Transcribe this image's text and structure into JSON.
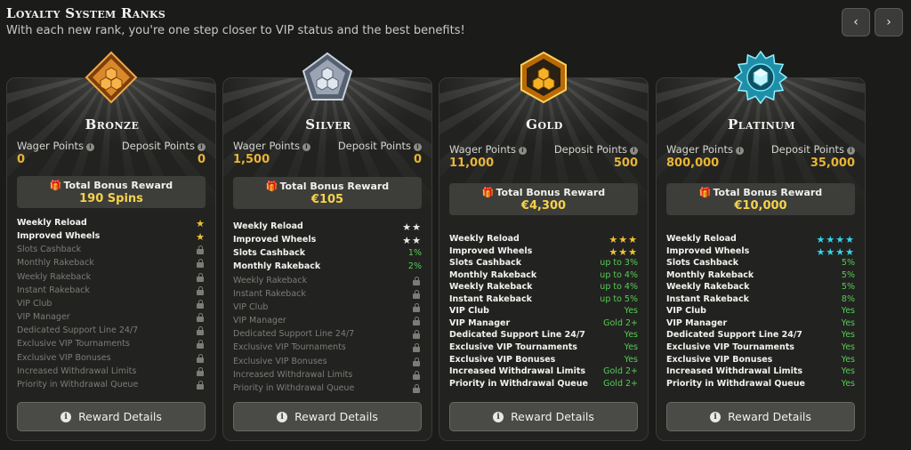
{
  "header": {
    "title": "Loyalty System Ranks",
    "subtitle": "With each new rank, you're one step closer to VIP status and the best benefits!",
    "prev_icon": "chevron-left-icon",
    "next_icon": "chevron-right-icon",
    "prev_glyph": "‹",
    "next_glyph": "›"
  },
  "labels": {
    "wager_points": "Wager Points",
    "deposit_points": "Deposit Points",
    "total_bonus_reward": "Total Bonus Reward",
    "reward_details": "Reward Details"
  },
  "colors": {
    "points": "#e9b436",
    "bonus_value": "#f7d24a",
    "bronze": "#d9892a",
    "silver": "#9aa4b4",
    "gold": "#f2a51c",
    "platinum": "#34c4dc",
    "positive": "#55cc55"
  },
  "cards": [
    {
      "rank": "Bronze",
      "wager_points": "0",
      "deposit_points": "0",
      "bonus": "190 Spins",
      "benefits": [
        {
          "name": "Weekly Reload",
          "value": "★",
          "kind": "star-gold",
          "active": true
        },
        {
          "name": "Improved Wheels",
          "value": "★",
          "kind": "star-gold",
          "active": true
        },
        {
          "name": "Slots Cashback",
          "value": "",
          "kind": "lock",
          "active": false
        },
        {
          "name": "Monthly Rakeback",
          "value": "",
          "kind": "lock",
          "active": false
        },
        {
          "name": "Weekly Rakeback",
          "value": "",
          "kind": "lock",
          "active": false
        },
        {
          "name": "Instant Rakeback",
          "value": "",
          "kind": "lock",
          "active": false
        },
        {
          "name": "VIP Club",
          "value": "",
          "kind": "lock",
          "active": false
        },
        {
          "name": "VIP Manager",
          "value": "",
          "kind": "lock",
          "active": false
        },
        {
          "name": "Dedicated Support Line 24/7",
          "value": "",
          "kind": "lock",
          "active": false
        },
        {
          "name": "Exclusive VIP Tournaments",
          "value": "",
          "kind": "lock",
          "active": false
        },
        {
          "name": "Exclusive VIP Bonuses",
          "value": "",
          "kind": "lock",
          "active": false
        },
        {
          "name": "Increased Withdrawal Limits",
          "value": "",
          "kind": "lock",
          "active": false
        },
        {
          "name": "Priority in Withdrawal Queue",
          "value": "",
          "kind": "lock",
          "active": false
        }
      ]
    },
    {
      "rank": "Silver",
      "wager_points": "1,500",
      "deposit_points": "0",
      "bonus": "€105",
      "benefits": [
        {
          "name": "Weekly Reload",
          "value": "★★",
          "kind": "star-white",
          "active": true
        },
        {
          "name": "Improved Wheels",
          "value": "★★",
          "kind": "star-white",
          "active": true
        },
        {
          "name": "Slots Cashback",
          "value": "1%",
          "kind": "green",
          "active": true
        },
        {
          "name": "Monthly Rakeback",
          "value": "2%",
          "kind": "green",
          "active": true
        },
        {
          "name": "Weekly Rakeback",
          "value": "",
          "kind": "lock",
          "active": false
        },
        {
          "name": "Instant Rakeback",
          "value": "",
          "kind": "lock",
          "active": false
        },
        {
          "name": "VIP Club",
          "value": "",
          "kind": "lock",
          "active": false
        },
        {
          "name": "VIP Manager",
          "value": "",
          "kind": "lock",
          "active": false
        },
        {
          "name": "Dedicated Support Line 24/7",
          "value": "",
          "kind": "lock",
          "active": false
        },
        {
          "name": "Exclusive VIP Tournaments",
          "value": "",
          "kind": "lock",
          "active": false
        },
        {
          "name": "Exclusive VIP Bonuses",
          "value": "",
          "kind": "lock",
          "active": false
        },
        {
          "name": "Increased Withdrawal Limits",
          "value": "",
          "kind": "lock",
          "active": false
        },
        {
          "name": "Priority in Withdrawal Queue",
          "value": "",
          "kind": "lock",
          "active": false
        }
      ]
    },
    {
      "rank": "Gold",
      "wager_points": "11,000",
      "deposit_points": "500",
      "bonus": "€4,300",
      "benefits": [
        {
          "name": "Weekly Reload",
          "value": "★★★",
          "kind": "star-gold",
          "active": true
        },
        {
          "name": "Improved Wheels",
          "value": "★★★",
          "kind": "star-gold",
          "active": true
        },
        {
          "name": "Slots Cashback",
          "value": "up to 3%",
          "kind": "green",
          "active": true
        },
        {
          "name": "Monthly Rakeback",
          "value": "up to 4%",
          "kind": "green",
          "active": true
        },
        {
          "name": "Weekly Rakeback",
          "value": "up to 4%",
          "kind": "green",
          "active": true
        },
        {
          "name": "Instant Rakeback",
          "value": "up to 5%",
          "kind": "green",
          "active": true
        },
        {
          "name": "VIP Club",
          "value": "Yes",
          "kind": "green",
          "active": true
        },
        {
          "name": "VIP Manager",
          "value": "Gold 2+",
          "kind": "green",
          "active": true
        },
        {
          "name": "Dedicated Support Line 24/7",
          "value": "Yes",
          "kind": "green",
          "active": true
        },
        {
          "name": "Exclusive VIP Tournaments",
          "value": "Yes",
          "kind": "green",
          "active": true
        },
        {
          "name": "Exclusive VIP Bonuses",
          "value": "Yes",
          "kind": "green",
          "active": true
        },
        {
          "name": "Increased Withdrawal Limits",
          "value": "Gold 2+",
          "kind": "green",
          "active": true
        },
        {
          "name": "Priority in Withdrawal Queue",
          "value": "Gold 2+",
          "kind": "green",
          "active": true
        }
      ]
    },
    {
      "rank": "Platinum",
      "wager_points": "800,000",
      "deposit_points": "35,000",
      "bonus": "€10,000",
      "benefits": [
        {
          "name": "Weekly Reload",
          "value": "★★★★",
          "kind": "star-cyan",
          "active": true
        },
        {
          "name": "Improved Wheels",
          "value": "★★★★",
          "kind": "star-cyan",
          "active": true
        },
        {
          "name": "Slots Cashback",
          "value": "5%",
          "kind": "green",
          "active": true
        },
        {
          "name": "Monthly Rakeback",
          "value": "5%",
          "kind": "green",
          "active": true
        },
        {
          "name": "Weekly Rakeback",
          "value": "5%",
          "kind": "green",
          "active": true
        },
        {
          "name": "Instant Rakeback",
          "value": "8%",
          "kind": "green",
          "active": true
        },
        {
          "name": "VIP Club",
          "value": "Yes",
          "kind": "green",
          "active": true
        },
        {
          "name": "VIP Manager",
          "value": "Yes",
          "kind": "green",
          "active": true
        },
        {
          "name": "Dedicated Support Line 24/7",
          "value": "Yes",
          "kind": "green",
          "active": true
        },
        {
          "name": "Exclusive VIP Tournaments",
          "value": "Yes",
          "kind": "green",
          "active": true
        },
        {
          "name": "Exclusive VIP Bonuses",
          "value": "Yes",
          "kind": "green",
          "active": true
        },
        {
          "name": "Increased Withdrawal Limits",
          "value": "Yes",
          "kind": "green",
          "active": true
        },
        {
          "name": "Priority in Withdrawal Queue",
          "value": "Yes",
          "kind": "green",
          "active": true
        }
      ]
    }
  ]
}
